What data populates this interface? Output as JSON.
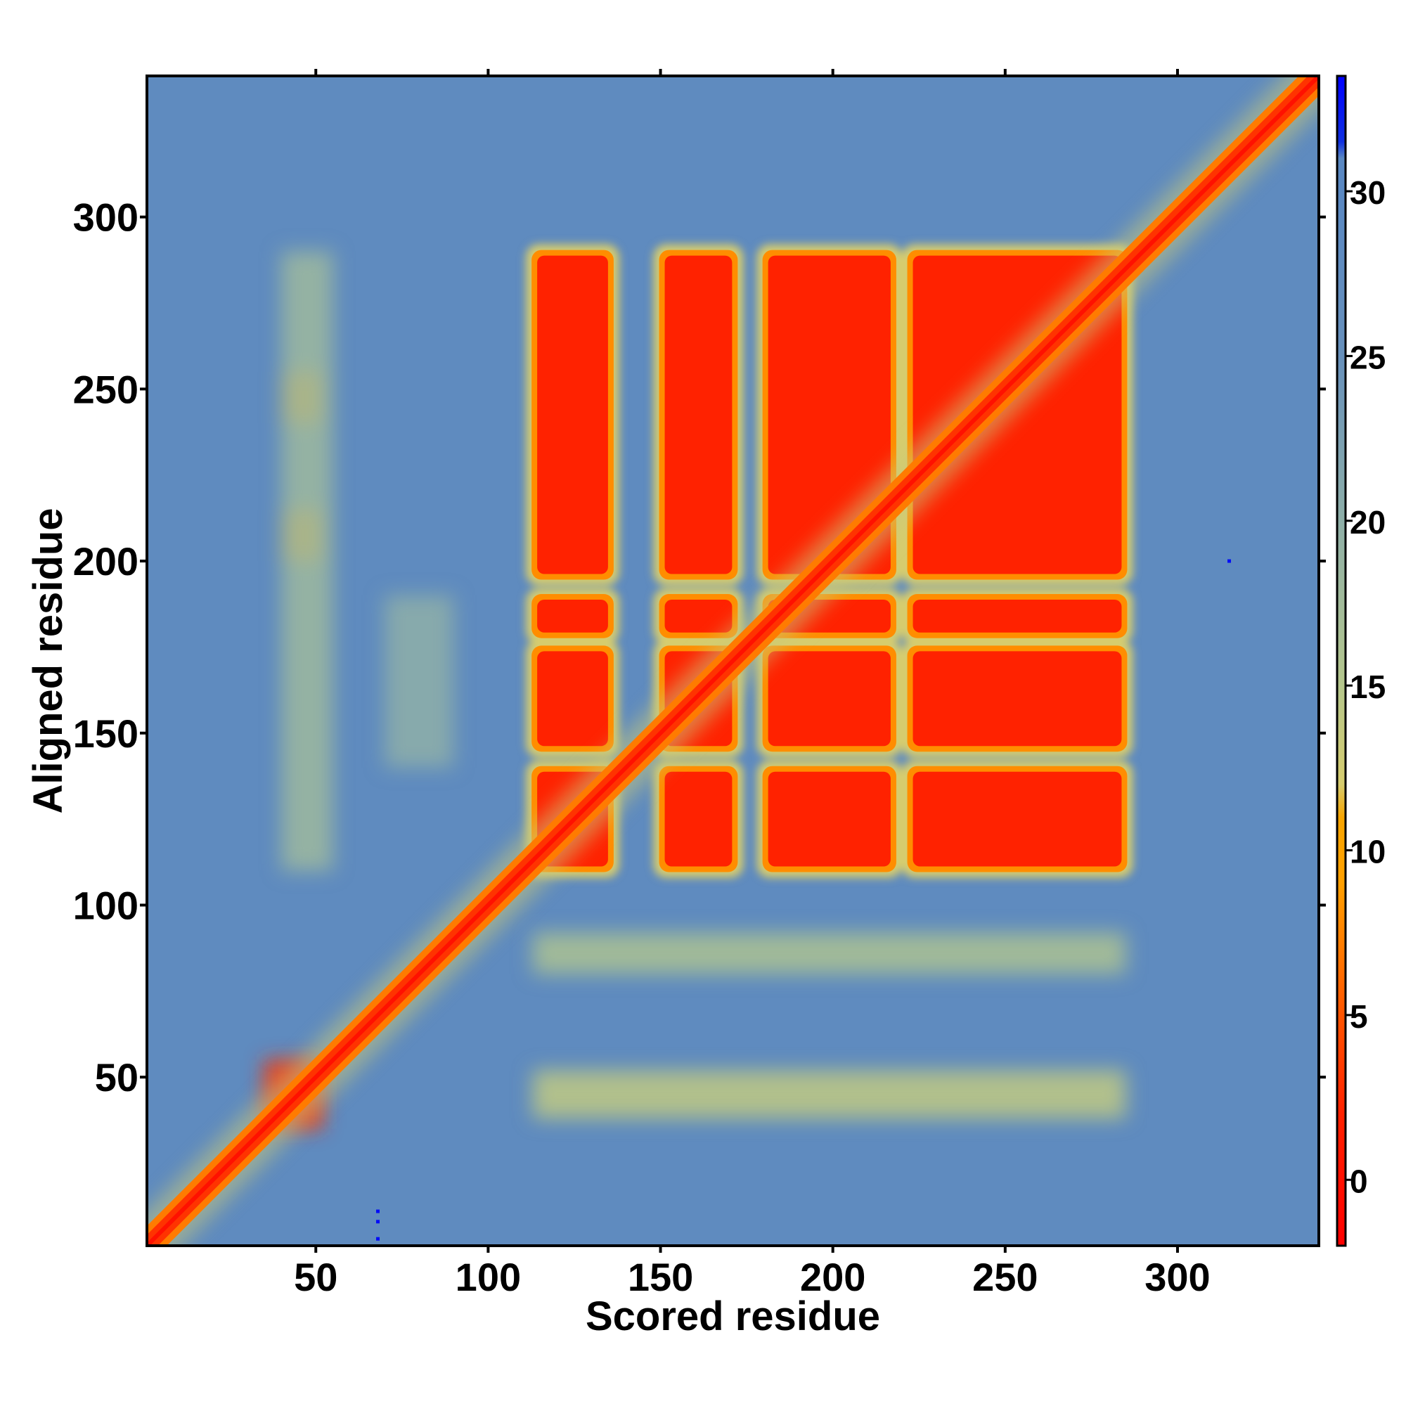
{
  "chart_data": {
    "type": "heatmap",
    "title": "",
    "xlabel": "Scored residue",
    "ylabel": "Aligned residue",
    "xlim": [
      1,
      341
    ],
    "ylim": [
      1,
      341
    ],
    "xticks": [
      50,
      100,
      150,
      200,
      250,
      300
    ],
    "yticks": [
      50,
      100,
      150,
      200,
      250,
      300
    ],
    "grid": false,
    "colorbar": {
      "label": "",
      "ticks": [
        0,
        5,
        10,
        15,
        20,
        25,
        30
      ],
      "range": [
        -2,
        33.5
      ],
      "stops": [
        {
          "value": -2,
          "color": "#ff0000"
        },
        {
          "value": 2,
          "color": "#ff2200"
        },
        {
          "value": 5,
          "color": "#ff5500"
        },
        {
          "value": 9,
          "color": "#ffa000"
        },
        {
          "value": 11,
          "color": "#f7a500"
        },
        {
          "value": 12,
          "color": "#d6cc6e"
        },
        {
          "value": 15,
          "color": "#b5c78c"
        },
        {
          "value": 20,
          "color": "#8eafa8"
        },
        {
          "value": 25,
          "color": "#6790bb"
        },
        {
          "value": 30,
          "color": "#5a88c2"
        },
        {
          "value": 31,
          "color": "#5a88c2"
        },
        {
          "value": 31.5,
          "color": "#1030e0"
        },
        {
          "value": 33.5,
          "color": "#0000ff"
        }
      ]
    },
    "diagonal_value": 0,
    "background_value": 28,
    "high_confidence_blocks": {
      "x_segments": [
        [
          113,
          136
        ],
        [
          150,
          172
        ],
        [
          180,
          218
        ],
        [
          222,
          285
        ]
      ],
      "y_segments": [
        [
          110,
          140
        ],
        [
          145,
          175
        ],
        [
          178,
          190
        ],
        [
          195,
          290
        ]
      ],
      "value": 2
    },
    "secondary_contacts": [
      {
        "x": [
          35,
          52
        ],
        "y": [
          35,
          55
        ],
        "value": 3
      },
      {
        "x": [
          40,
          52
        ],
        "y": [
          200,
          215
        ],
        "value": 9
      },
      {
        "x": [
          40,
          52
        ],
        "y": [
          240,
          255
        ],
        "value": 9
      },
      {
        "x": [
          113,
          285
        ],
        "y": [
          38,
          52
        ],
        "value": 14
      },
      {
        "x": [
          113,
          285
        ],
        "y": [
          80,
          92
        ],
        "value": 16
      },
      {
        "x": [
          40,
          55
        ],
        "y": [
          110,
          290
        ],
        "value": 18
      },
      {
        "x": [
          70,
          90
        ],
        "y": [
          140,
          190
        ],
        "value": 20
      }
    ],
    "outlier_points": [
      {
        "x": 315,
        "y": 200,
        "value": 33
      },
      {
        "x": 68,
        "y": 3,
        "value": 33
      },
      {
        "x": 68,
        "y": 8,
        "value": 33
      },
      {
        "x": 68,
        "y": 11,
        "value": 33
      }
    ]
  }
}
